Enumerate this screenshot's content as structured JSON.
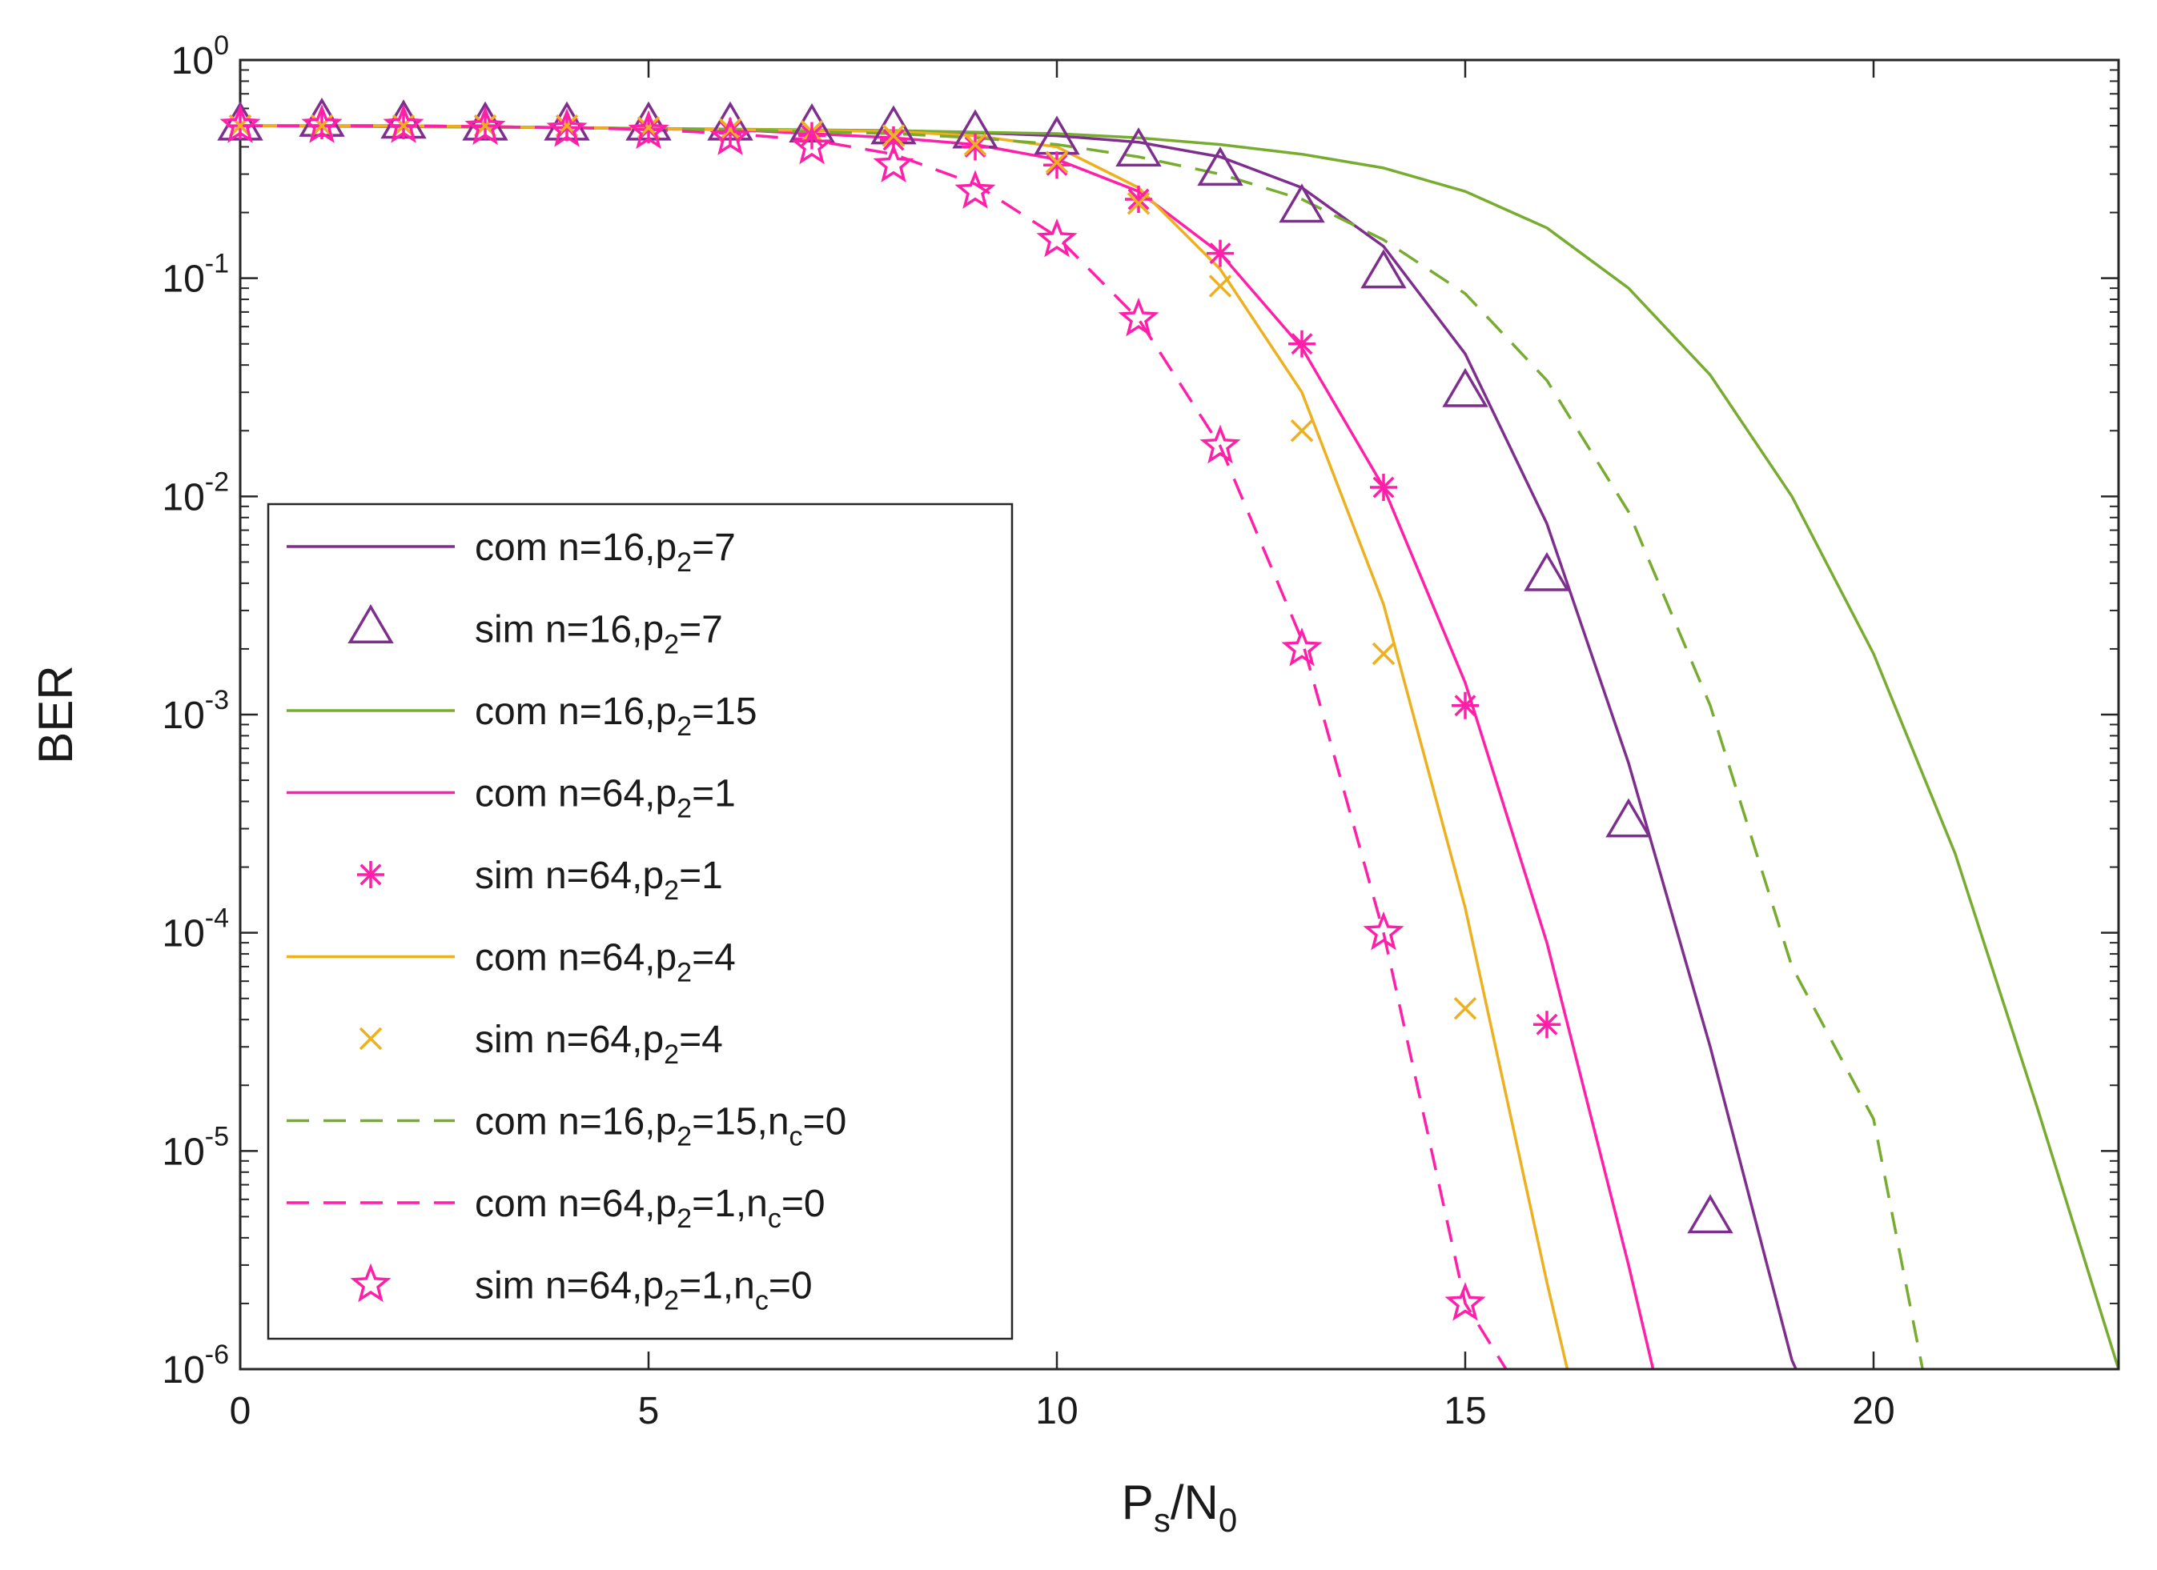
{
  "chart_data": {
    "type": "line",
    "title": "",
    "xlabel": {
      "main": "P",
      "sub1": "s",
      "mid": "/N",
      "sub2": "0"
    },
    "ylabel": "BER",
    "xscale": "linear",
    "yscale": "log",
    "xlim": [
      0,
      23
    ],
    "ylim": [
      1e-06,
      1
    ],
    "xticks": [
      0,
      5,
      10,
      15,
      20
    ],
    "xtick_labels": [
      "0",
      "5",
      "10",
      "15",
      "20"
    ],
    "yticks": [
      {
        "base": "10",
        "exp": "0"
      },
      {
        "base": "10",
        "exp": "-1"
      },
      {
        "base": "10",
        "exp": "-2"
      },
      {
        "base": "10",
        "exp": "-3"
      },
      {
        "base": "10",
        "exp": "-4"
      },
      {
        "base": "10",
        "exp": "-5"
      },
      {
        "base": "10",
        "exp": "-6"
      }
    ],
    "legend_position": "lower-left",
    "series": [
      {
        "name": "com n=16,p2=7",
        "label": {
          "pre": "com n=16,p",
          "sub": "2",
          "post": "=7",
          "sub2": "",
          "post2": ""
        },
        "kind": "line",
        "dash": "solid",
        "color": "#7e2f8e",
        "x": [
          0,
          2,
          4,
          6,
          8,
          9,
          10,
          11,
          12,
          13,
          14,
          15,
          16,
          17,
          18,
          19,
          19.05
        ],
        "y": [
          0.5,
          0.5,
          0.49,
          0.48,
          0.475,
          0.465,
          0.45,
          0.42,
          0.36,
          0.26,
          0.14,
          0.045,
          0.0075,
          0.0006,
          3e-05,
          1.1e-06,
          1e-06
        ]
      },
      {
        "name": "sim n=16,p2=7",
        "label": {
          "pre": "sim n=16,p",
          "sub": "2",
          "post": "=7",
          "sub2": "",
          "post2": ""
        },
        "kind": "marker",
        "marker": "triangle",
        "color": "#7e2f8e",
        "x": [
          0,
          1,
          2,
          3,
          4,
          5,
          6,
          7,
          8,
          9,
          10,
          11,
          12,
          13,
          14,
          15,
          16,
          17,
          18
        ],
        "y": [
          0.5,
          0.52,
          0.51,
          0.5,
          0.5,
          0.5,
          0.5,
          0.49,
          0.48,
          0.46,
          0.43,
          0.38,
          0.31,
          0.21,
          0.105,
          0.03,
          0.0043,
          0.00032,
          4.9e-06
        ]
      },
      {
        "name": "com n=16,p2=15",
        "label": {
          "pre": "com n=16,p",
          "sub": "2",
          "post": "=15",
          "sub2": "",
          "post2": ""
        },
        "kind": "line",
        "dash": "solid",
        "color": "#77ac30",
        "x": [
          0,
          4,
          8,
          10,
          11,
          12,
          13,
          14,
          15,
          16,
          17,
          18,
          19,
          20,
          21,
          22,
          23
        ],
        "y": [
          0.5,
          0.49,
          0.475,
          0.46,
          0.44,
          0.41,
          0.37,
          0.32,
          0.25,
          0.17,
          0.09,
          0.036,
          0.01,
          0.0019,
          0.00023,
          1.6e-05,
          1e-06
        ]
      },
      {
        "name": "com n=64,p2=1",
        "label": {
          "pre": "com n=64,p",
          "sub": "2",
          "post": "=1",
          "sub2": "",
          "post2": ""
        },
        "kind": "line",
        "dash": "solid",
        "color": "#ff1fa8",
        "x": [
          0,
          2,
          4,
          6,
          7,
          8,
          9,
          10,
          11,
          12,
          13,
          14,
          15,
          16,
          17,
          17.3
        ],
        "y": [
          0.5,
          0.5,
          0.49,
          0.48,
          0.46,
          0.44,
          0.41,
          0.35,
          0.25,
          0.13,
          0.048,
          0.011,
          0.0014,
          9e-05,
          3e-06,
          1e-06
        ]
      },
      {
        "name": "sim n=64,p2=1",
        "label": {
          "pre": "sim n=64,p",
          "sub": "2",
          "post": "=1",
          "sub2": "",
          "post2": ""
        },
        "kind": "marker",
        "marker": "asterisk",
        "color": "#ff1fa8",
        "x": [
          0,
          1,
          2,
          3,
          4,
          5,
          6,
          7,
          8,
          9,
          10,
          11,
          12,
          13,
          14,
          15,
          16
        ],
        "y": [
          0.5,
          0.5,
          0.5,
          0.5,
          0.49,
          0.48,
          0.47,
          0.45,
          0.43,
          0.4,
          0.33,
          0.23,
          0.13,
          0.05,
          0.011,
          0.0011,
          3.8e-05
        ]
      },
      {
        "name": "com n=64,p2=4",
        "label": {
          "pre": "com n=64,p",
          "sub": "2",
          "post": "=4",
          "sub2": "",
          "post2": ""
        },
        "kind": "line",
        "dash": "solid",
        "color": "#edb120",
        "x": [
          0,
          2,
          4,
          6,
          8,
          9,
          10,
          11,
          12,
          13,
          14,
          15,
          16,
          16.25
        ],
        "y": [
          0.5,
          0.5,
          0.49,
          0.48,
          0.47,
          0.45,
          0.4,
          0.26,
          0.11,
          0.03,
          0.0032,
          0.00013,
          2.5e-06,
          1e-06
        ]
      },
      {
        "name": "sim n=64,p2=4",
        "label": {
          "pre": "sim n=64,p",
          "sub": "2",
          "post": "=4",
          "sub2": "",
          "post2": ""
        },
        "kind": "marker",
        "marker": "x",
        "color": "#edb120",
        "x": [
          0,
          1,
          2,
          3,
          4,
          5,
          6,
          7,
          8,
          9,
          10,
          11,
          12,
          13,
          14,
          15
        ],
        "y": [
          0.5,
          0.5,
          0.5,
          0.5,
          0.5,
          0.49,
          0.48,
          0.47,
          0.45,
          0.41,
          0.34,
          0.22,
          0.092,
          0.02,
          0.0019,
          4.5e-05
        ]
      },
      {
        "name": "com n=16,p2=15,nc=0",
        "label": {
          "pre": "com n=16,p",
          "sub": "2",
          "post": "=15,n",
          "sub2": "c",
          "post2": "=0"
        },
        "kind": "line",
        "dash": "dashed",
        "color": "#77ac30",
        "x": [
          0,
          4,
          6,
          8,
          9,
          10,
          11,
          12,
          13,
          14,
          15,
          16,
          17,
          18,
          19,
          20,
          20.6
        ],
        "y": [
          0.5,
          0.49,
          0.48,
          0.46,
          0.44,
          0.41,
          0.36,
          0.3,
          0.23,
          0.15,
          0.085,
          0.034,
          0.0085,
          0.0011,
          7e-05,
          1.4e-05,
          1e-06
        ]
      },
      {
        "name": "com n=64,p2=1,nc=0",
        "label": {
          "pre": "com n=64,p",
          "sub": "2",
          "post": "=1,n",
          "sub2": "c",
          "post2": "=0"
        },
        "kind": "line",
        "dash": "dashed",
        "color": "#ff1fa8",
        "x": [
          0,
          2,
          4,
          5,
          6,
          7,
          8,
          9,
          10,
          11,
          12,
          13,
          14,
          15,
          15.5
        ],
        "y": [
          0.5,
          0.5,
          0.49,
          0.48,
          0.46,
          0.43,
          0.37,
          0.27,
          0.155,
          0.065,
          0.017,
          0.0022,
          0.0001,
          2e-06,
          1e-06
        ]
      },
      {
        "name": "sim n=64,p2=1,nc=0",
        "label": {
          "pre": "sim n=64,p",
          "sub": "2",
          "post": "=1,n",
          "sub2": "c",
          "post2": "=0"
        },
        "kind": "marker",
        "marker": "star",
        "color": "#ff1fa8",
        "x": [
          0,
          1,
          2,
          3,
          4,
          5,
          6,
          7,
          8,
          9,
          10,
          11,
          12,
          13,
          14,
          15
        ],
        "y": [
          0.5,
          0.5,
          0.5,
          0.49,
          0.48,
          0.47,
          0.44,
          0.4,
          0.33,
          0.25,
          0.15,
          0.065,
          0.017,
          0.002,
          0.0001,
          2e-06
        ]
      }
    ]
  }
}
